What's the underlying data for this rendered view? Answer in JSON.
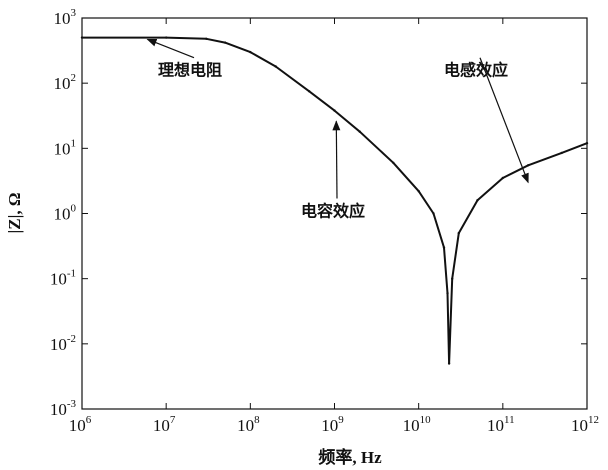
{
  "chart_data": {
    "type": "line",
    "title": "",
    "xlabel": "频率, Hz",
    "ylabel": "|Z|, Ω",
    "x_scale": "log",
    "y_scale": "log",
    "xlim": [
      1000000.0,
      1000000000000.0
    ],
    "ylim": [
      0.001,
      1000.0
    ],
    "grid": false,
    "x_ticks": [
      {
        "base": "10",
        "exp": "6"
      },
      {
        "base": "10",
        "exp": "7"
      },
      {
        "base": "10",
        "exp": "8"
      },
      {
        "base": "10",
        "exp": "9"
      },
      {
        "base": "10",
        "exp": "10"
      },
      {
        "base": "10",
        "exp": "11"
      },
      {
        "base": "10",
        "exp": "12"
      }
    ],
    "y_ticks": [
      {
        "base": "10",
        "exp": "-3"
      },
      {
        "base": "10",
        "exp": "-2"
      },
      {
        "base": "10",
        "exp": "-1"
      },
      {
        "base": "10",
        "exp": "0"
      },
      {
        "base": "10",
        "exp": "1"
      },
      {
        "base": "10",
        "exp": "2"
      },
      {
        "base": "10",
        "exp": "3"
      }
    ],
    "series": [
      {
        "color": "#111111",
        "x": [
          1000000.0,
          10000000.0,
          30000000.0,
          50000000.0,
          100000000.0,
          200000000.0,
          500000000.0,
          1000000000.0,
          2000000000.0,
          5000000000.0,
          10000000000.0,
          15000000000.0,
          20000000000.0,
          22000000000.0,
          23000000000.0,
          25000000000.0,
          30000000000.0,
          50000000000.0,
          100000000000.0,
          200000000000.0,
          500000000000.0,
          1000000000000.0
        ],
        "y": [
          500,
          500,
          480,
          420,
          300,
          180,
          75,
          38,
          18,
          6,
          2.2,
          1.0,
          0.3,
          0.06,
          0.005,
          0.1,
          0.5,
          1.6,
          3.5,
          5.5,
          8.5,
          12
        ]
      }
    ],
    "annotations": [
      {
        "text": "理想电阻",
        "x": 8000000.0,
        "y": 130,
        "arrow_to": [
          6000000.0,
          470
        ]
      },
      {
        "text": "电容效应",
        "x": 400000000.0,
        "y": 0.9,
        "arrow_to": [
          1050000000.0,
          26
        ]
      },
      {
        "text": "电感效应",
        "x": 20000000000.0,
        "y": 130,
        "arrow_to": [
          200000000000.0,
          3
        ]
      }
    ]
  }
}
